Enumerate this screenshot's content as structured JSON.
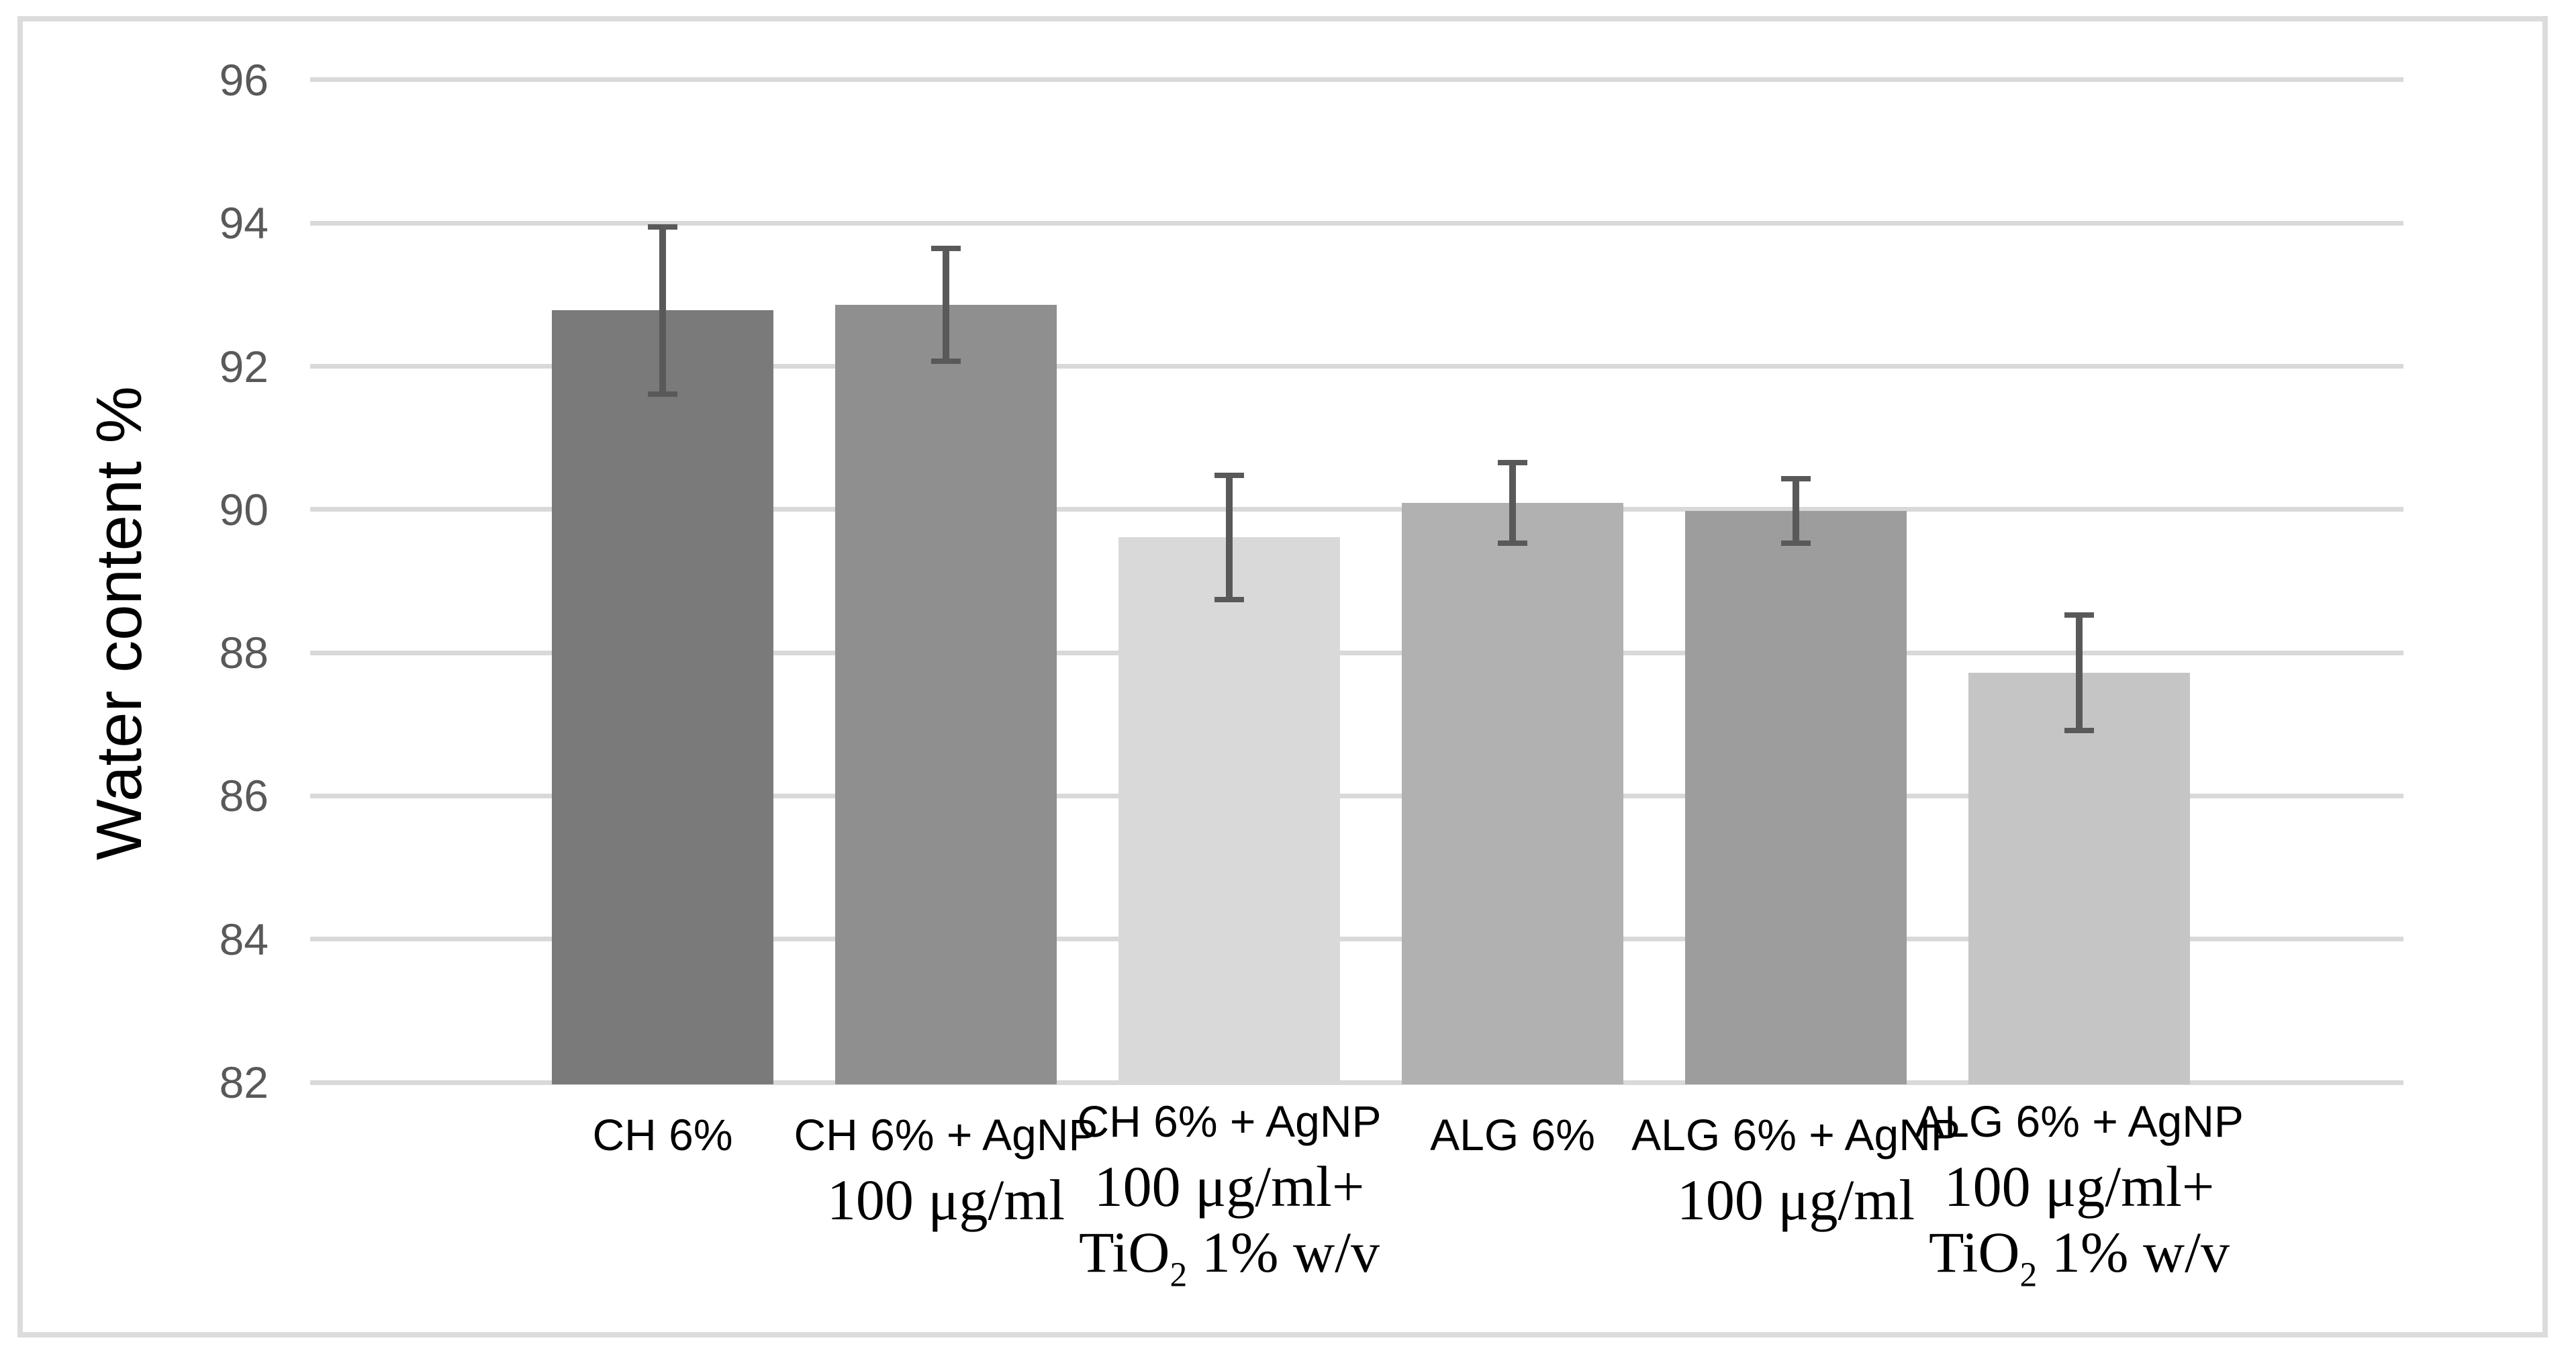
{
  "page": {
    "background_color": "#ffffff",
    "frame_border_color": "#dcdcdc"
  },
  "chart_data": {
    "type": "bar",
    "title": "",
    "xlabel": "",
    "ylabel": "Water content %",
    "ylim": [
      82,
      96
    ],
    "yticks": [
      82,
      84,
      86,
      88,
      90,
      92,
      94,
      96
    ],
    "grid": true,
    "legend": false,
    "categories": [
      {
        "lines": [
          "CH 6%"
        ]
      },
      {
        "lines": [
          "CH 6% + AgNP",
          "100 μg/ml"
        ]
      },
      {
        "lines": [
          "CH 6% + AgNP",
          "100 μg/ml+",
          "TiO₂ 1% w/v"
        ]
      },
      {
        "lines": [
          "ALG 6%"
        ]
      },
      {
        "lines": [
          "ALG 6% + AgNP",
          "100 μg/ml"
        ]
      },
      {
        "lines": [
          "ALG 6% + AgNP",
          "100 μg/ml+",
          "TiO₂ 1% w/v"
        ]
      }
    ],
    "values": [
      92.78,
      92.86,
      89.61,
      90.09,
      89.98,
      87.72
    ],
    "errors": [
      1.17,
      0.79,
      0.87,
      0.56,
      0.45,
      0.81
    ],
    "bar_colors": [
      "#7a7a7a",
      "#8f8f8f",
      "#d9d9d9",
      "#b1b1b1",
      "#9d9d9d",
      "#c5c5c5"
    ],
    "gridline_color": "#d9d9d9",
    "error_bar_color": "#595959",
    "tick_label_color": "#595959",
    "category_label_color": "#000000",
    "axis_title_color": "#000000"
  }
}
